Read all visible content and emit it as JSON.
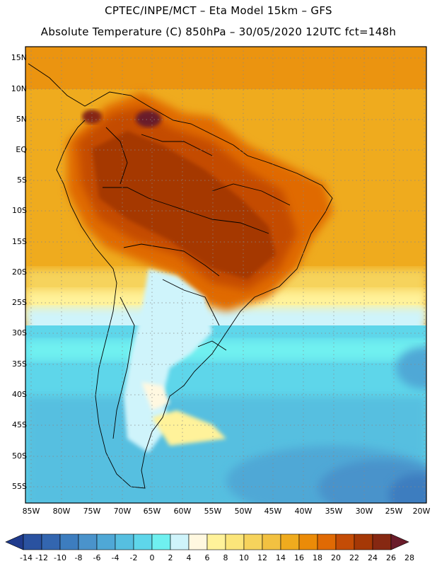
{
  "header": {
    "line1": "CPTEC/INPE/MCT –  Eta Model 15km – GFS",
    "line2": "Absolute Temperature (C) 850hPa – 30/05/2020 12UTC fct=148h"
  },
  "axes": {
    "lat_labels": [
      "15N",
      "10N",
      "5N",
      "EQ",
      "5S",
      "10S",
      "15S",
      "20S",
      "25S",
      "30S",
      "35S",
      "40S",
      "45S",
      "50S",
      "55S"
    ],
    "lon_labels": [
      "85W",
      "80W",
      "75W",
      "70W",
      "65W",
      "60W",
      "55W",
      "50W",
      "45W",
      "40W",
      "35W",
      "30W",
      "25W",
      "20W"
    ]
  },
  "colorbar": {
    "ticks": [
      "-14",
      "-12",
      "-10",
      "-8",
      "-6",
      "-4",
      "-2",
      "0",
      "2",
      "4",
      "6",
      "8",
      "10",
      "12",
      "14",
      "16",
      "18",
      "20",
      "22",
      "24",
      "26",
      "28"
    ],
    "colors": [
      "#1f3a8c",
      "#2a52a0",
      "#3366b0",
      "#3d7dbf",
      "#4a93cb",
      "#4fa8d6",
      "#56bfe0",
      "#5ed6ea",
      "#6ff0f0",
      "#cff4fb",
      "#fff8e0",
      "#fff29a",
      "#fbe57a",
      "#f6d35c",
      "#f2c141",
      "#efab1e",
      "#eb8b08",
      "#e06a04",
      "#c44c06",
      "#a53806",
      "#862812",
      "#6a1c2a"
    ]
  }
}
